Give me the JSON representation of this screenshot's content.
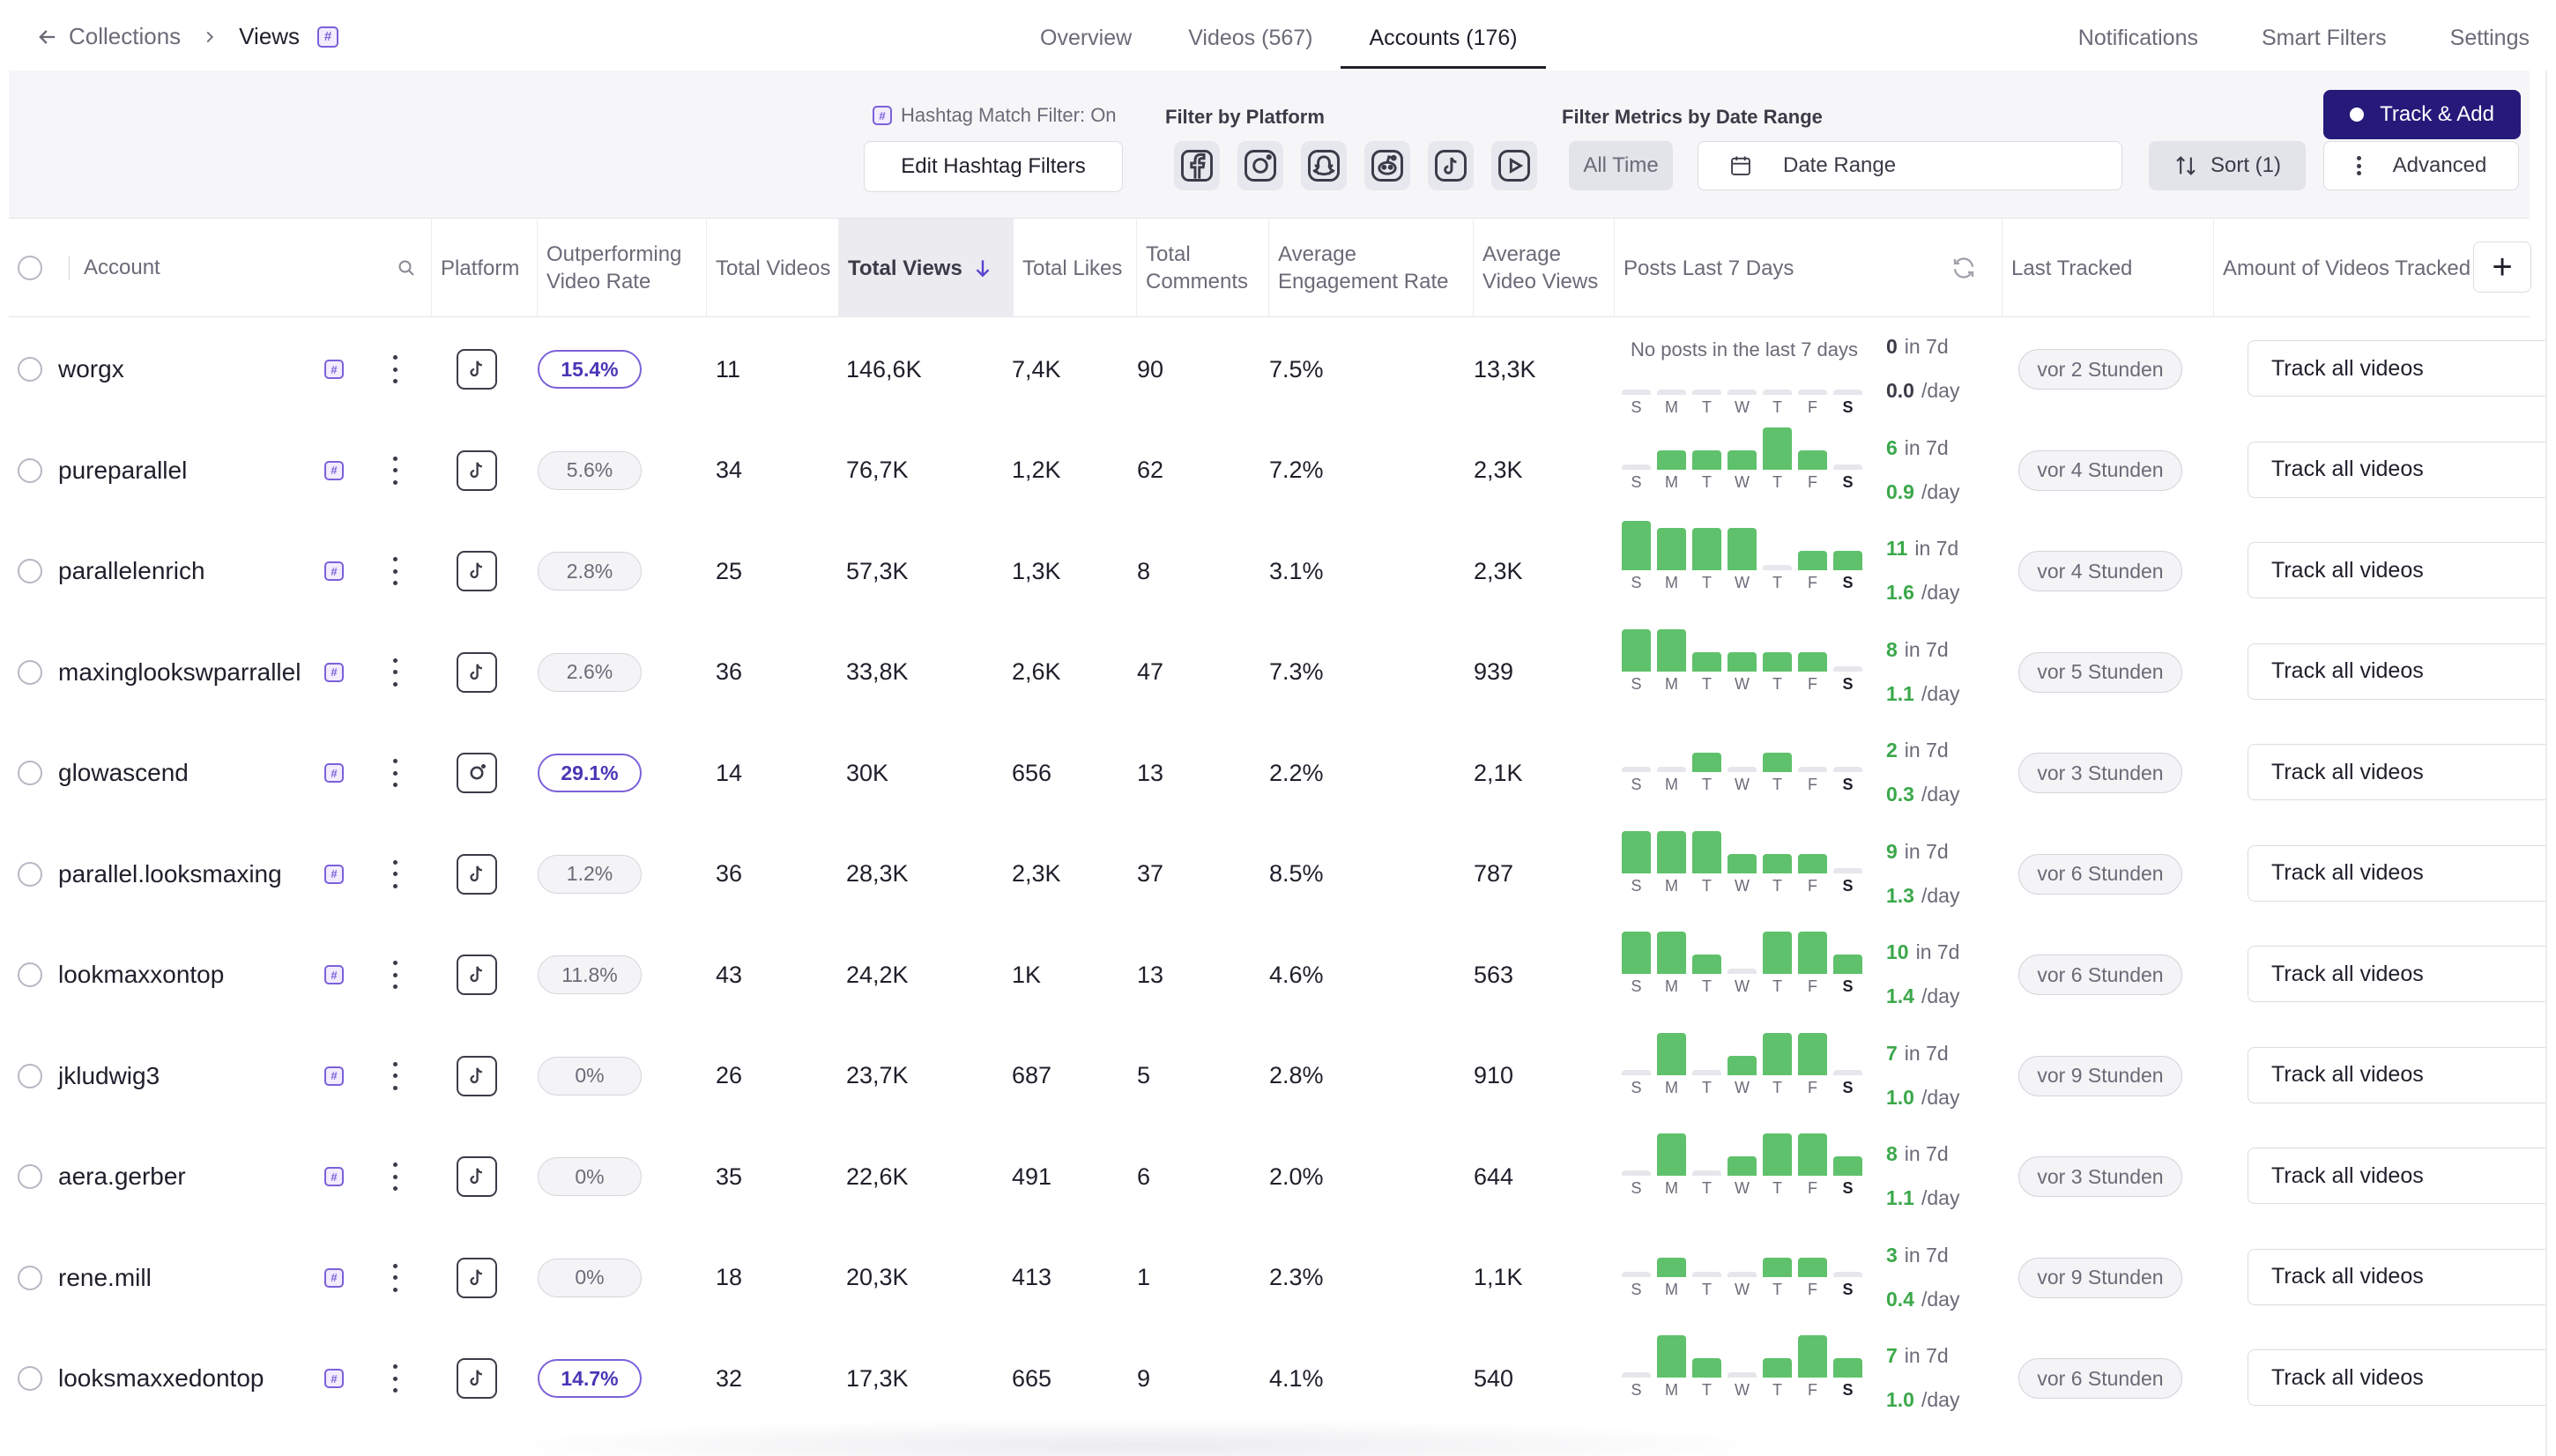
{
  "breadcrumb": {
    "parent": "Collections",
    "current": "Views",
    "hash": "#"
  },
  "tabs": [
    {
      "label": "Overview",
      "active": false
    },
    {
      "label": "Videos (567)",
      "active": false
    },
    {
      "label": "Accounts (176)",
      "active": true
    }
  ],
  "right_nav": {
    "notifications": "Notifications",
    "smart_filters": "Smart Filters",
    "settings": "Settings"
  },
  "toolbar": {
    "hashtag_status": "Hashtag Match Filter: On",
    "edit_hashtag": "Edit Hashtag Filters",
    "filter_platform_label": "Filter by Platform",
    "platforms": [
      "facebook-icon",
      "instagram-icon",
      "snapchat-icon",
      "reddit-icon",
      "tiktok-icon",
      "youtube-icon"
    ],
    "filter_date_label": "Filter Metrics by Date Range",
    "all_time": "All Time",
    "date_range": "Date Range",
    "sort": "Sort (1)",
    "advanced": "Advanced",
    "track_add": "Track & Add"
  },
  "columns": {
    "account": "Account",
    "platform": "Platform",
    "outperforming": "Outperforming Video Rate",
    "total_videos": "Total Videos",
    "total_views": "Total Views",
    "total_likes": "Total Likes",
    "total_comments": "Total Comments",
    "avg_engagement": "Average Engagement Rate",
    "avg_views": "Average Video Views",
    "posts_last_7": "Posts Last 7 Days",
    "last_tracked": "Last Tracked",
    "amount_tracked": "Amount of Videos Tracked"
  },
  "days": [
    "S",
    "M",
    "T",
    "W",
    "T",
    "F",
    "S"
  ],
  "colors": {
    "accent": "#25197a",
    "highlight": "#7b61d9",
    "bar": "#5fc16b",
    "positive": "#3ba84a"
  },
  "rows": [
    {
      "account": "worgx",
      "platform": "tiktok",
      "rate": "15.4%",
      "rate_hi": true,
      "videos": "11",
      "views": "146,6K",
      "likes": "7,4K",
      "comments": "90",
      "engagement": "7.5%",
      "avg_views": "13,3K",
      "no_posts": "No posts in the last 7 days",
      "bars": [
        0,
        0,
        0,
        0,
        0,
        0,
        0
      ],
      "posts": "0",
      "in7d": "in 7d",
      "per_day": "0.0",
      "day_unit": "/day",
      "last": "vor 2 Stunden",
      "track": "Track all videos"
    },
    {
      "account": "pureparallel",
      "platform": "tiktok",
      "rate": "5.6%",
      "rate_hi": false,
      "videos": "34",
      "views": "76,7K",
      "likes": "1,2K",
      "comments": "62",
      "engagement": "7.2%",
      "avg_views": "2,3K",
      "no_posts": "",
      "bars": [
        0,
        1,
        1,
        1,
        2,
        1,
        0
      ],
      "posts": "6",
      "in7d": "in 7d",
      "per_day": "0.9",
      "day_unit": "/day",
      "last": "vor 4 Stunden",
      "track": "Track all videos"
    },
    {
      "account": "parallelenrich",
      "platform": "tiktok",
      "rate": "2.8%",
      "rate_hi": false,
      "videos": "25",
      "views": "57,3K",
      "likes": "1,3K",
      "comments": "8",
      "engagement": "3.1%",
      "avg_views": "2,3K",
      "no_posts": "",
      "bars": [
        3,
        2,
        2,
        2,
        0,
        1,
        1
      ],
      "posts": "11",
      "in7d": "in 7d",
      "per_day": "1.6",
      "day_unit": "/day",
      "last": "vor 4 Stunden",
      "track": "Track all videos"
    },
    {
      "account": "maxinglookswparrallel",
      "platform": "tiktok",
      "rate": "2.6%",
      "rate_hi": false,
      "videos": "36",
      "views": "33,8K",
      "likes": "2,6K",
      "comments": "47",
      "engagement": "7.3%",
      "avg_views": "939",
      "no_posts": "",
      "bars": [
        2,
        2,
        1,
        1,
        1,
        1,
        0
      ],
      "posts": "8",
      "in7d": "in 7d",
      "per_day": "1.1",
      "day_unit": "/day",
      "last": "vor 5 Stunden",
      "track": "Track all videos"
    },
    {
      "account": "glowascend",
      "platform": "instagram",
      "rate": "29.1%",
      "rate_hi": true,
      "videos": "14",
      "views": "30K",
      "likes": "656",
      "comments": "13",
      "engagement": "2.2%",
      "avg_views": "2,1K",
      "no_posts": "",
      "bars": [
        0,
        0,
        1,
        0,
        1,
        0,
        0
      ],
      "posts": "2",
      "in7d": "in 7d",
      "per_day": "0.3",
      "day_unit": "/day",
      "last": "vor 3 Stunden",
      "track": "Track all videos"
    },
    {
      "account": "parallel.looksmaxing",
      "platform": "tiktok",
      "rate": "1.2%",
      "rate_hi": false,
      "videos": "36",
      "views": "28,3K",
      "likes": "2,3K",
      "comments": "37",
      "engagement": "8.5%",
      "avg_views": "787",
      "no_posts": "",
      "bars": [
        2,
        2,
        2,
        1,
        1,
        1,
        0
      ],
      "posts": "9",
      "in7d": "in 7d",
      "per_day": "1.3",
      "day_unit": "/day",
      "last": "vor 6 Stunden",
      "track": "Track all videos"
    },
    {
      "account": "lookmaxxontop",
      "platform": "tiktok",
      "rate": "11.8%",
      "rate_hi": false,
      "videos": "43",
      "views": "24,2K",
      "likes": "1K",
      "comments": "13",
      "engagement": "4.6%",
      "avg_views": "563",
      "no_posts": "",
      "bars": [
        2,
        2,
        1,
        0,
        2,
        2,
        1
      ],
      "posts": "10",
      "in7d": "in 7d",
      "per_day": "1.4",
      "day_unit": "/day",
      "last": "vor 6 Stunden",
      "track": "Track all videos"
    },
    {
      "account": "jkludwig3",
      "platform": "tiktok",
      "rate": "0%",
      "rate_hi": false,
      "videos": "26",
      "views": "23,7K",
      "likes": "687",
      "comments": "5",
      "engagement": "2.8%",
      "avg_views": "910",
      "no_posts": "",
      "bars": [
        0,
        2,
        0,
        1,
        2,
        2,
        0
      ],
      "posts": "7",
      "in7d": "in 7d",
      "per_day": "1.0",
      "day_unit": "/day",
      "last": "vor 9 Stunden",
      "track": "Track all videos"
    },
    {
      "account": "aera.gerber",
      "platform": "tiktok",
      "rate": "0%",
      "rate_hi": false,
      "videos": "35",
      "views": "22,6K",
      "likes": "491",
      "comments": "6",
      "engagement": "2.0%",
      "avg_views": "644",
      "no_posts": "",
      "bars": [
        0,
        2,
        0,
        1,
        2,
        2,
        1
      ],
      "posts": "8",
      "in7d": "in 7d",
      "per_day": "1.1",
      "day_unit": "/day",
      "last": "vor 3 Stunden",
      "track": "Track all videos"
    },
    {
      "account": "rene.mill",
      "platform": "tiktok",
      "rate": "0%",
      "rate_hi": false,
      "videos": "18",
      "views": "20,3K",
      "likes": "413",
      "comments": "1",
      "engagement": "2.3%",
      "avg_views": "1,1K",
      "no_posts": "",
      "bars": [
        0,
        1,
        0,
        0,
        1,
        1,
        0
      ],
      "posts": "3",
      "in7d": "in 7d",
      "per_day": "0.4",
      "day_unit": "/day",
      "last": "vor 9 Stunden",
      "track": "Track all videos"
    },
    {
      "account": "looksmaxxedontop",
      "platform": "tiktok",
      "rate": "14.7%",
      "rate_hi": true,
      "videos": "32",
      "views": "17,3K",
      "likes": "665",
      "comments": "9",
      "engagement": "4.1%",
      "avg_views": "540",
      "no_posts": "",
      "bars": [
        0,
        2,
        1,
        0,
        1,
        2,
        1
      ],
      "posts": "7",
      "in7d": "in 7d",
      "per_day": "1.0",
      "day_unit": "/day",
      "last": "vor 6 Stunden",
      "track": "Track all videos"
    }
  ]
}
